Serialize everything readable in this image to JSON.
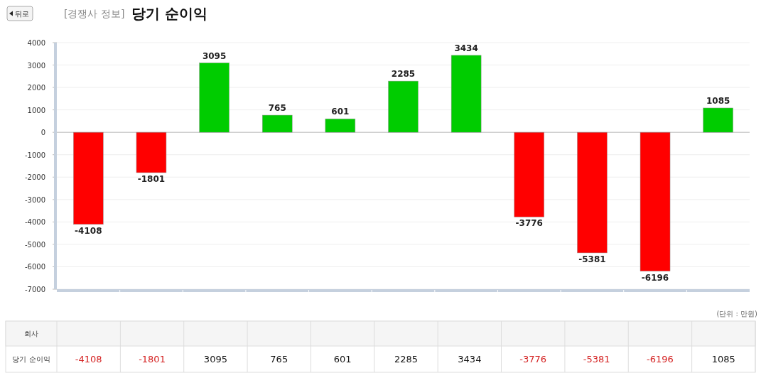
{
  "chart_data": {
    "type": "bar",
    "title": "당기 순이익",
    "subtitle": "[경쟁사 정보]",
    "categories": [
      null,
      null,
      null,
      null,
      null,
      null,
      null,
      null,
      null,
      null,
      null
    ],
    "values": [
      -4108,
      -1801,
      3095,
      765,
      601,
      2285,
      3434,
      -3776,
      -5381,
      -6196,
      1085
    ],
    "colors": [
      "#ff0000",
      "#ff0000",
      "#00cc00",
      "#00cc00",
      "#00cc00",
      "#00cc00",
      "#00cc00",
      "#ff0000",
      "#ff0000",
      "#ff0000",
      "#00cc00"
    ],
    "ylim": [
      -7000,
      4000
    ],
    "yticks": [
      -7000,
      -6000,
      -5000,
      -4000,
      -3000,
      -2000,
      -1000,
      0,
      1000,
      2000,
      3000,
      4000
    ],
    "value_labels": [
      "-4108",
      "-1801",
      "3095",
      "765",
      "601",
      "2285",
      "3434",
      "-3776",
      "-5381",
      "-6196",
      "1085"
    ],
    "grid": "y",
    "data_labels": true,
    "annotations": [
      "뒤로",
      "(단위 : 만원)",
      "회사",
      "당기 순이익",
      "-4108",
      "-1801",
      "3095",
      "765",
      "601",
      "2285",
      "3434",
      "-3776",
      "-5381",
      "-6196",
      "1085"
    ]
  }
}
